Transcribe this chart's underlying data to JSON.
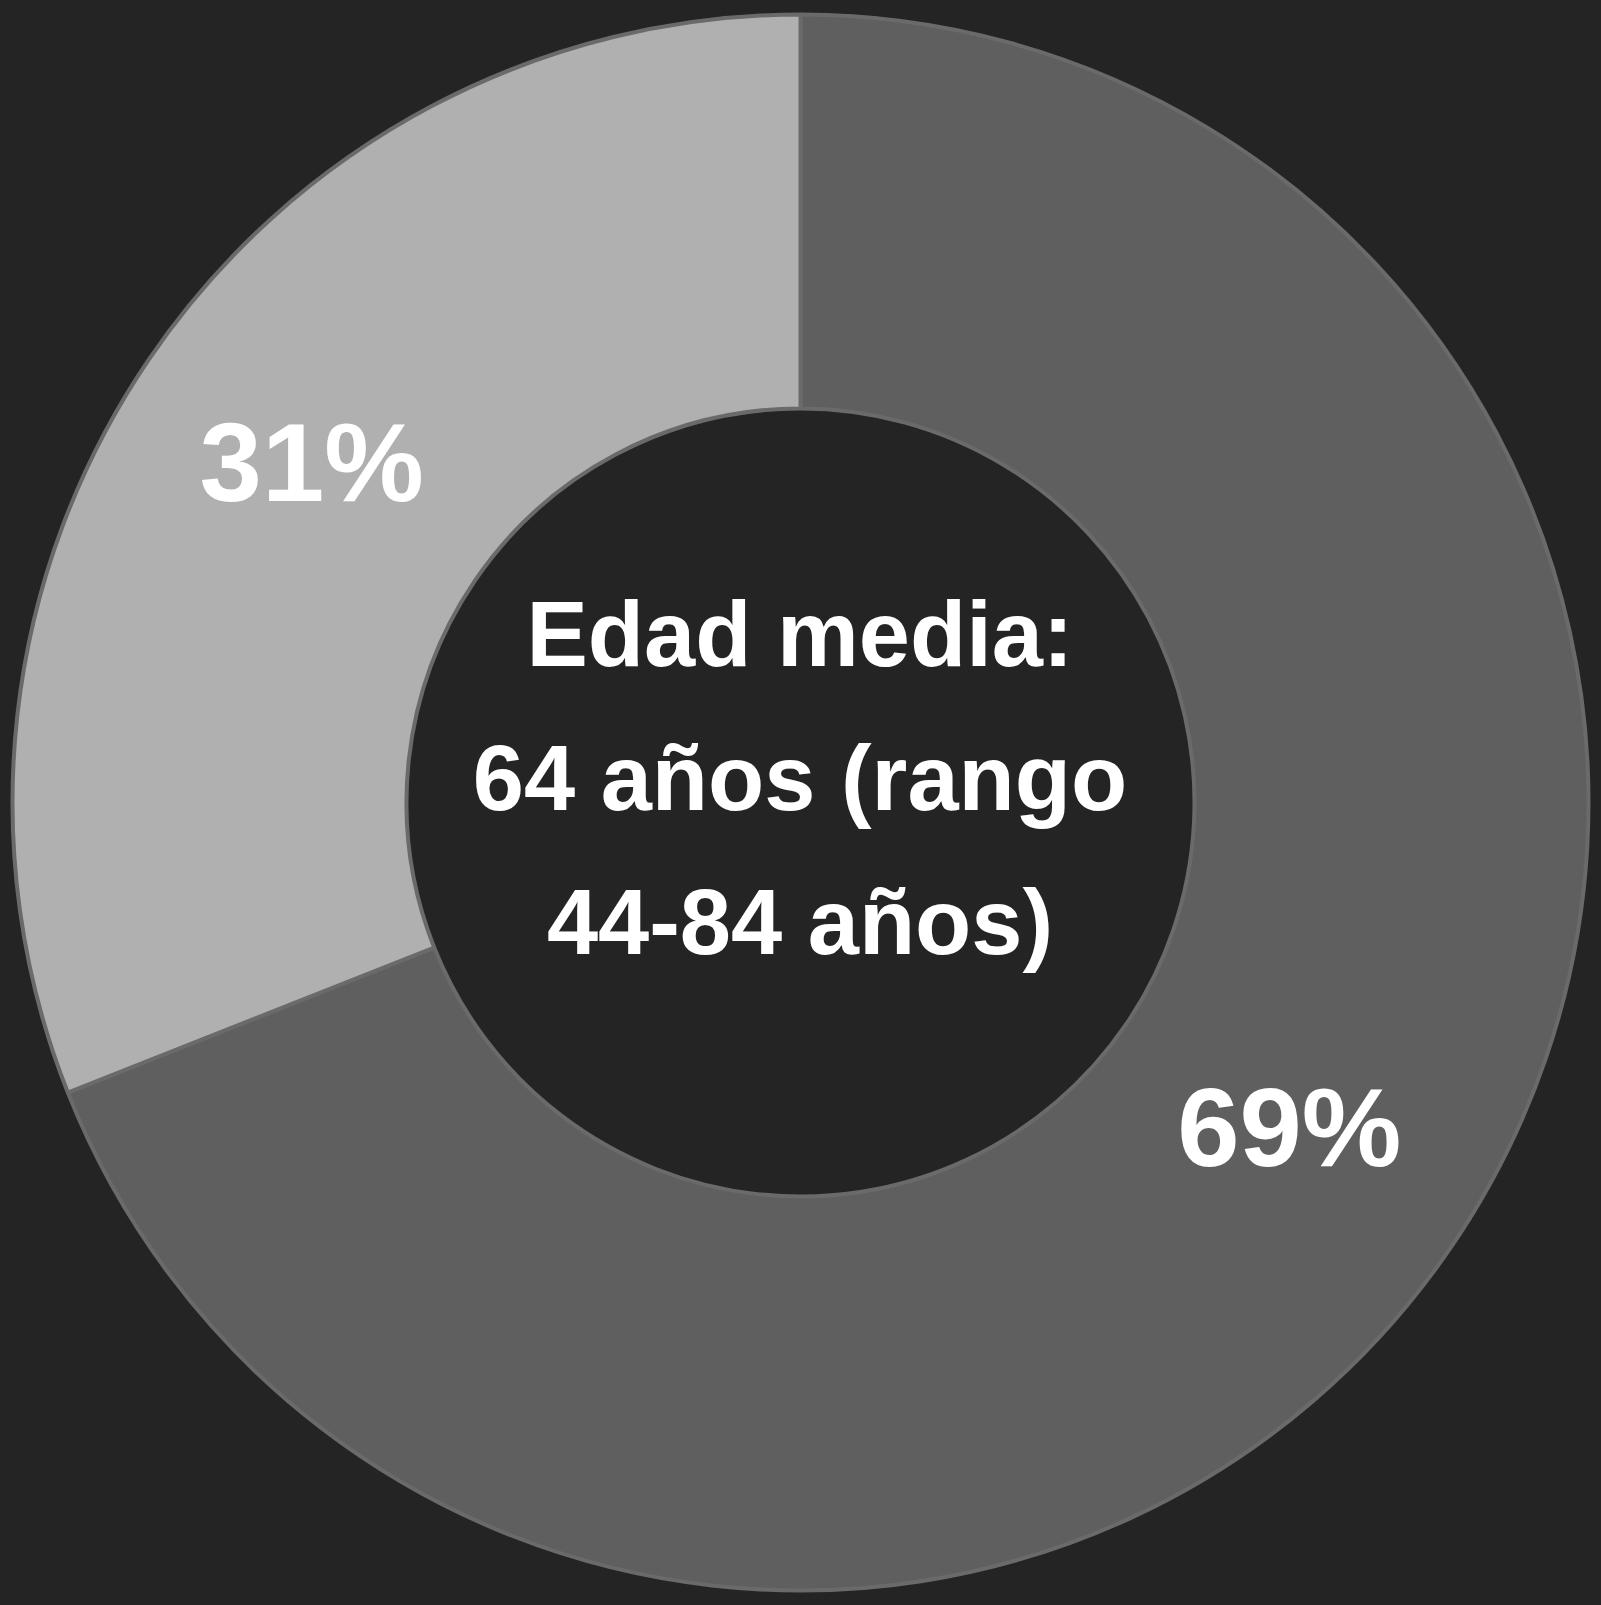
{
  "chart_data": {
    "type": "donut",
    "categories": [
      null,
      null
    ],
    "values": [
      69,
      31
    ],
    "colors": [
      "#5f5f5f",
      "#b0b0b0"
    ],
    "value_labels": [
      "69%",
      "31%"
    ],
    "annotations": [
      "Edad media: 64 años (rango 44-84 años)"
    ],
    "legend": false
  }
}
